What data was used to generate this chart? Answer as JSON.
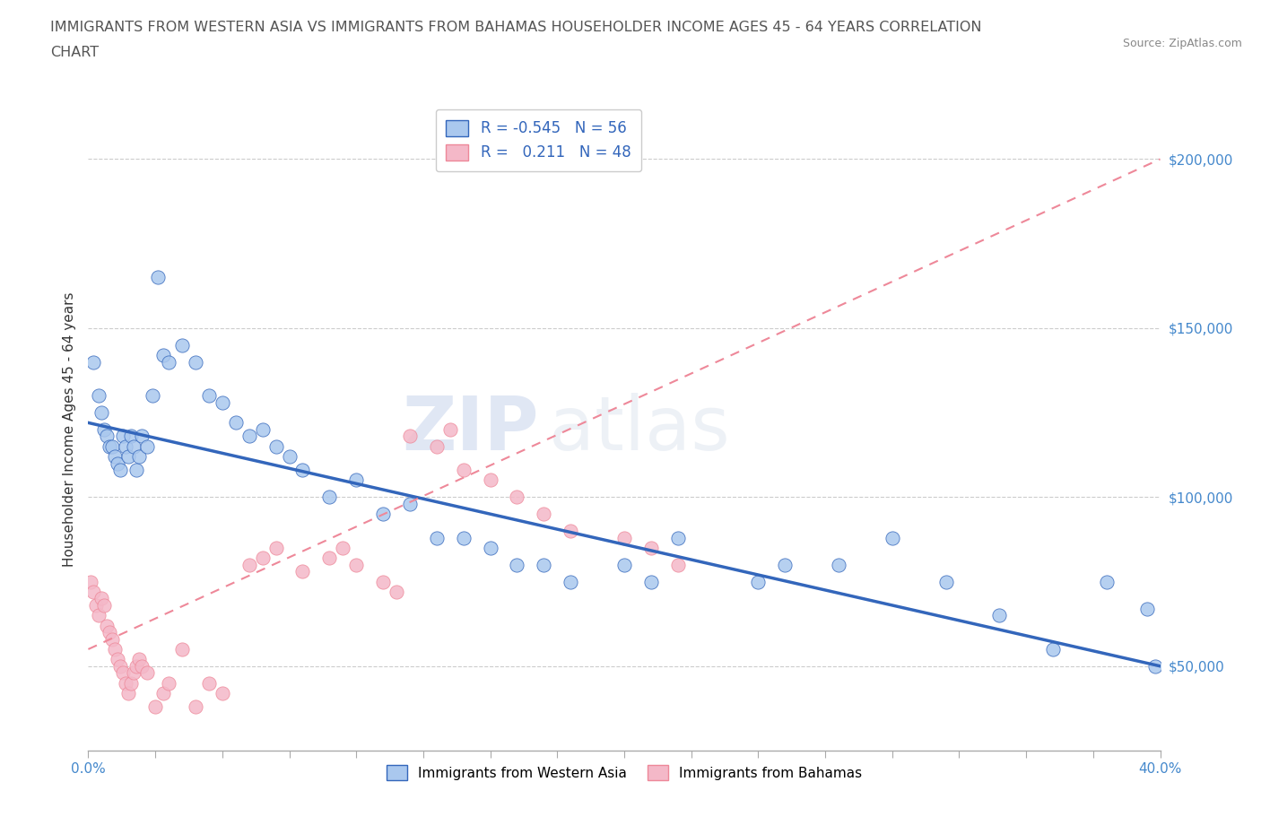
{
  "title_line1": "IMMIGRANTS FROM WESTERN ASIA VS IMMIGRANTS FROM BAHAMAS HOUSEHOLDER INCOME AGES 45 - 64 YEARS CORRELATION",
  "title_line2": "CHART",
  "source": "Source: ZipAtlas.com",
  "ylabel": "Householder Income Ages 45 - 64 years",
  "xlim": [
    0.0,
    0.4
  ],
  "ylim": [
    25000,
    215000
  ],
  "yticks": [
    50000,
    100000,
    150000,
    200000
  ],
  "legend_R_blue": "-0.545",
  "legend_N_blue": "56",
  "legend_R_pink": "0.211",
  "legend_N_pink": "48",
  "blue_color": "#aac8ee",
  "pink_color": "#f4b8c8",
  "line_blue": "#3366bb",
  "line_pink": "#ee8899",
  "watermark_zip": "ZIP",
  "watermark_atlas": "atlas",
  "blue_x": [
    0.002,
    0.004,
    0.005,
    0.006,
    0.007,
    0.008,
    0.009,
    0.01,
    0.011,
    0.012,
    0.013,
    0.014,
    0.015,
    0.016,
    0.017,
    0.018,
    0.019,
    0.02,
    0.022,
    0.024,
    0.026,
    0.028,
    0.03,
    0.035,
    0.04,
    0.045,
    0.05,
    0.055,
    0.06,
    0.065,
    0.07,
    0.075,
    0.08,
    0.09,
    0.1,
    0.11,
    0.12,
    0.13,
    0.14,
    0.15,
    0.16,
    0.17,
    0.18,
    0.2,
    0.21,
    0.22,
    0.25,
    0.26,
    0.28,
    0.3,
    0.32,
    0.34,
    0.36,
    0.38,
    0.395,
    0.398
  ],
  "blue_y": [
    140000,
    130000,
    125000,
    120000,
    118000,
    115000,
    115000,
    112000,
    110000,
    108000,
    118000,
    115000,
    112000,
    118000,
    115000,
    108000,
    112000,
    118000,
    115000,
    130000,
    165000,
    142000,
    140000,
    145000,
    140000,
    130000,
    128000,
    122000,
    118000,
    120000,
    115000,
    112000,
    108000,
    100000,
    105000,
    95000,
    98000,
    88000,
    88000,
    85000,
    80000,
    80000,
    75000,
    80000,
    75000,
    88000,
    75000,
    80000,
    80000,
    88000,
    75000,
    65000,
    55000,
    75000,
    67000,
    50000
  ],
  "pink_x": [
    0.001,
    0.002,
    0.003,
    0.004,
    0.005,
    0.006,
    0.007,
    0.008,
    0.009,
    0.01,
    0.011,
    0.012,
    0.013,
    0.014,
    0.015,
    0.016,
    0.017,
    0.018,
    0.019,
    0.02,
    0.022,
    0.025,
    0.028,
    0.03,
    0.035,
    0.04,
    0.045,
    0.05,
    0.06,
    0.065,
    0.07,
    0.08,
    0.09,
    0.095,
    0.1,
    0.11,
    0.115,
    0.12,
    0.13,
    0.135,
    0.14,
    0.15,
    0.16,
    0.17,
    0.18,
    0.2,
    0.21,
    0.22
  ],
  "pink_y": [
    75000,
    72000,
    68000,
    65000,
    70000,
    68000,
    62000,
    60000,
    58000,
    55000,
    52000,
    50000,
    48000,
    45000,
    42000,
    45000,
    48000,
    50000,
    52000,
    50000,
    48000,
    38000,
    42000,
    45000,
    55000,
    38000,
    45000,
    42000,
    80000,
    82000,
    85000,
    78000,
    82000,
    85000,
    80000,
    75000,
    72000,
    118000,
    115000,
    120000,
    108000,
    105000,
    100000,
    95000,
    90000,
    88000,
    85000,
    80000
  ],
  "blue_line_x0": 0.0,
  "blue_line_y0": 122000,
  "blue_line_x1": 0.4,
  "blue_line_y1": 50000,
  "pink_line_x0": 0.0,
  "pink_line_y0": 55000,
  "pink_line_x1": 0.4,
  "pink_line_y1": 200000
}
